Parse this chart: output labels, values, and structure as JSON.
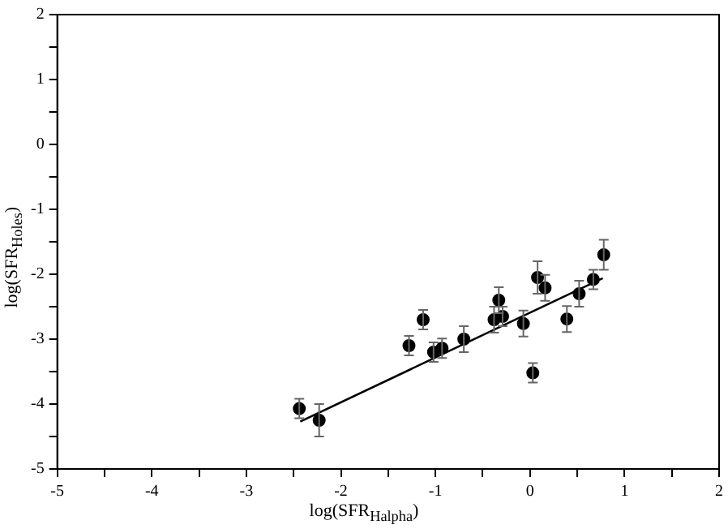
{
  "chart_data": {
    "type": "scatter",
    "xlabel": "log(SFR$_{Halpha}$)",
    "ylabel": "log(SFR$_{Holes}$)",
    "xlim": [
      -5,
      2
    ],
    "ylim": [
      -5,
      2
    ],
    "xticks": [
      -5,
      {
        "value": -4.5,
        "label": null
      },
      -4,
      {
        "value": -3.5,
        "label": null
      },
      -3,
      {
        "value": -2.5,
        "label": null
      },
      -2,
      {
        "value": -1.5,
        "label": null
      },
      -1,
      {
        "value": -0.5,
        "label": null
      },
      0,
      {
        "value": 0.5,
        "label": null
      },
      1,
      {
        "value": 1.5,
        "label": null
      },
      2
    ],
    "yticks": [
      -5,
      {
        "value": -4.5,
        "label": null
      },
      -4,
      {
        "value": -3.5,
        "label": null
      },
      -3,
      {
        "value": -2.5,
        "label": null
      },
      -2,
      {
        "value": -1.5,
        "label": null
      },
      -1,
      {
        "value": -0.5,
        "label": null
      },
      0,
      {
        "value": 0.5,
        "label": null
      },
      1,
      {
        "value": 1.5,
        "label": null
      },
      2
    ],
    "grid": false,
    "legend": false,
    "series": [
      {
        "type": "scatter",
        "color": "#000000",
        "marker": "circle",
        "x": [
          -2.44,
          -2.23,
          -1.28,
          -1.13,
          -1.02,
          -0.93,
          -0.7,
          -0.38,
          -0.33,
          -0.29,
          -0.07,
          0.03,
          0.08,
          0.16,
          0.39,
          0.52,
          0.67,
          0.78
        ],
        "values": [
          -4.07,
          -4.25,
          -3.1,
          -2.7,
          -3.2,
          -3.14,
          -3.0,
          -2.7,
          -2.4,
          -2.65,
          -2.76,
          -3.52,
          -2.05,
          -2.21,
          -2.69,
          -2.3,
          -2.08,
          -1.7
        ],
        "errors": [
          0.15,
          0.25,
          0.15,
          0.15,
          0.15,
          0.15,
          0.2,
          0.2,
          0.2,
          0.15,
          0.2,
          0.15,
          0.25,
          0.2,
          0.2,
          0.2,
          0.15,
          0.23
        ]
      },
      {
        "type": "line",
        "color": "#000000",
        "marker": "none",
        "line_style": "solid",
        "x": [
          -2.43,
          0.77
        ],
        "values": [
          -4.27,
          -2.06
        ]
      }
    ]
  }
}
